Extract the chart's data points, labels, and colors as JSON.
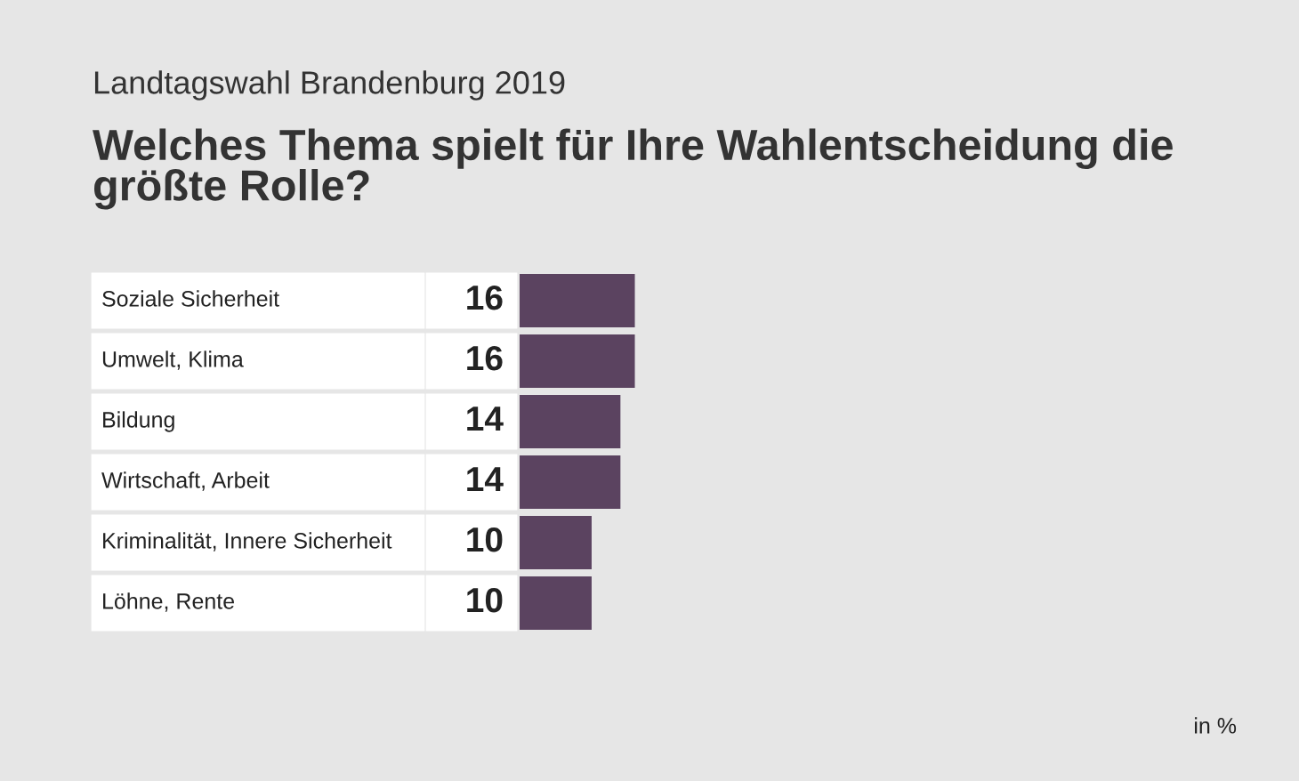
{
  "chart_data": {
    "type": "bar",
    "orientation": "horizontal",
    "title": "Welches Thema spielt für Ihre Wahlentscheidung die größte Rolle?",
    "subtitle": "Landtagswahl Brandenburg 2019",
    "categories": [
      "Soziale Sicherheit",
      "Umwelt, Klima",
      "Bildung",
      "Wirtschaft, Arbeit",
      "Kriminalität, Innere Sicherheit",
      "Löhne, Rente"
    ],
    "values": [
      16,
      16,
      14,
      14,
      10,
      10
    ],
    "color": "#5b4360",
    "data_labels": true,
    "annotations": [
      "in %"
    ]
  }
}
